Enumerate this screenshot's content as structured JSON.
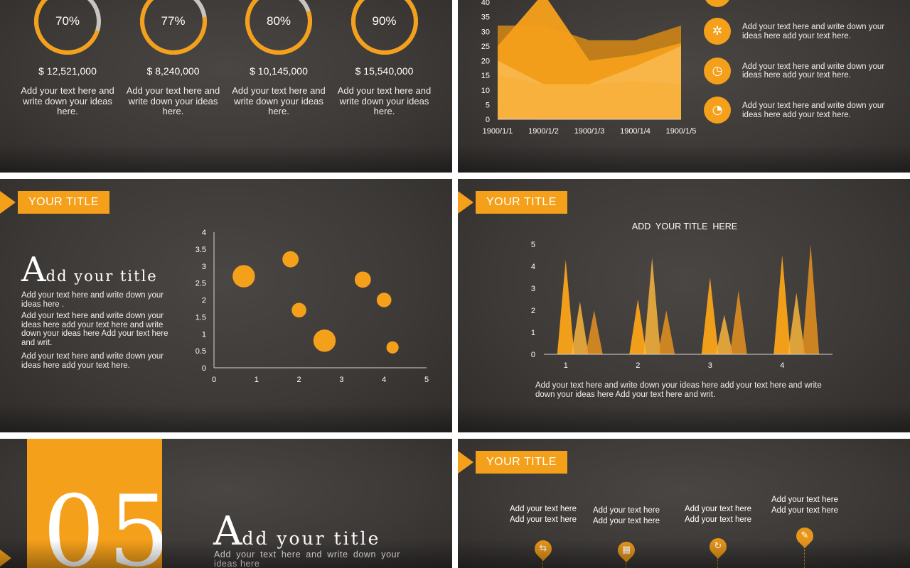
{
  "colors": {
    "accent": "#f5a01a",
    "accent_light": "#f8b545",
    "bg": "#3c3937",
    "gap": "#ffffff"
  },
  "slide1": {
    "items": [
      {
        "pct": "70%",
        "value": 0.7,
        "amount": "$ 12,521,000",
        "text": "Add your text here and write down your ideas here."
      },
      {
        "pct": "77%",
        "value": 0.77,
        "amount": "$ 8,240,000",
        "text": "Add your text here and write down your ideas here."
      },
      {
        "pct": "80%",
        "value": 0.8,
        "amount": "$ 10,145,000",
        "text": "Add your text here and write down your ideas here."
      },
      {
        "pct": "90%",
        "value": 0.9,
        "amount": "$ 15,540,000",
        "text": "Add your text here and write down your ideas here."
      }
    ]
  },
  "slide2": {
    "features": [
      {
        "icon": "gear-icon",
        "text": "Add your text here and write down your ideas here add your text here."
      },
      {
        "icon": "alarm-clock-icon",
        "text": "Add your text here and write down your ideas here add your text here."
      },
      {
        "icon": "satellite-dish-icon",
        "text": "Add your text here and write down your ideas here add your text here."
      }
    ]
  },
  "slide3": {
    "tag": "YOUR TITLE",
    "heading_cap": "A",
    "heading_rest": "dd your title",
    "paragraphs": [
      "Add your text here and write down your ideas here .",
      "Add your text here and write down your ideas here add your text here and write down your ideas here Add your text here and writ.",
      "Add your text here and write down your ideas here add your text here."
    ]
  },
  "slide4": {
    "tag": "YOUR TITLE",
    "chart_title": "ADD  YOUR TITLE  HERE",
    "caption": "Add your text here and write down your ideas here add your text here and write down your ideas here Add your text here and writ."
  },
  "slide5": {
    "number": "05",
    "heading_cap": "A",
    "heading_rest": "dd your title",
    "text": "Add your text here and write down your ideas here"
  },
  "slide6": {
    "tag": "YOUR TITLE",
    "steps": [
      {
        "line1": "Add your text here",
        "line2": "Add your text here",
        "icon": "transfer-arrows-icon"
      },
      {
        "line1": "Add your text here",
        "line2": "Add your text here",
        "icon": "calendar-icon"
      },
      {
        "line1": "Add your text here",
        "line2": "Add your text here",
        "icon": "refresh-icon"
      },
      {
        "line1": "Add your text here",
        "line2": "Add your text here",
        "icon": "wrench-icon"
      }
    ]
  },
  "chart_data": [
    {
      "type": "area",
      "categories": [
        "1900/1/1",
        "1900/1/2",
        "1900/1/3",
        "1900/1/4",
        "1900/1/5"
      ],
      "series": [
        {
          "values": [
            32,
            32,
            27,
            27,
            32
          ]
        },
        {
          "values": [
            25,
            43,
            20,
            22,
            26
          ]
        },
        {
          "values": [
            20,
            12,
            12,
            18,
            25
          ]
        },
        {
          "values": [
            15,
            12,
            12,
            13,
            12
          ]
        }
      ],
      "ylim": [
        0,
        40
      ],
      "yticks": [
        "0",
        "5",
        "10",
        "15",
        "20",
        "25",
        "30",
        "35",
        "40"
      ]
    },
    {
      "type": "scatter",
      "points": [
        {
          "x": 0.7,
          "y": 2.7,
          "size": 3
        },
        {
          "x": 1.8,
          "y": 3.2,
          "size": 1.5
        },
        {
          "x": 2.0,
          "y": 1.7,
          "size": 1.2
        },
        {
          "x": 2.6,
          "y": 0.8,
          "size": 3
        },
        {
          "x": 3.5,
          "y": 2.6,
          "size": 1.5
        },
        {
          "x": 4.0,
          "y": 2.0,
          "size": 1.2
        },
        {
          "x": 4.2,
          "y": 0.6,
          "size": 0.8
        }
      ],
      "xlim": [
        0,
        5
      ],
      "ylim": [
        0,
        4
      ],
      "xticks": [
        "0",
        "1",
        "2",
        "3",
        "4",
        "5"
      ],
      "yticks": [
        "0",
        "0.5",
        "1",
        "1.5",
        "2",
        "2.5",
        "3",
        "3.5",
        "4"
      ]
    },
    {
      "type": "area",
      "title": "ADD  YOUR TITLE  HERE",
      "categories": [
        "1",
        "2",
        "3",
        "4"
      ],
      "series": [
        {
          "values": [
            4.3,
            2.5,
            3.5,
            4.5
          ]
        },
        {
          "values": [
            2.4,
            4.4,
            1.8,
            2.8
          ]
        },
        {
          "values": [
            2.0,
            2.0,
            2.9,
            5.0
          ]
        }
      ],
      "ylim": [
        0,
        5
      ],
      "yticks": [
        "0",
        "1",
        "2",
        "3",
        "4",
        "5"
      ]
    }
  ]
}
